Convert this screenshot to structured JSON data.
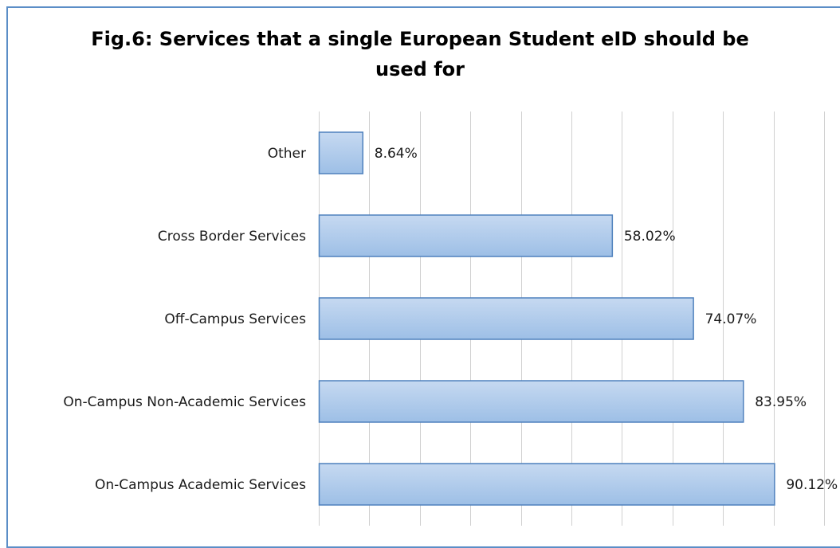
{
  "chart_data": {
    "type": "bar",
    "orientation": "horizontal",
    "title_lines": [
      "Fig.6: Services that a single European Student eID should be",
      "used for"
    ],
    "categories": [
      "Other",
      "Cross Border Services",
      "Off-Campus Services",
      "On-Campus Non-Academic Services",
      "On-Campus Academic Services"
    ],
    "values": [
      8.64,
      58.02,
      74.07,
      83.95,
      90.12
    ],
    "data_labels": [
      "8.64%",
      "58.02%",
      "74.07%",
      "83.95%",
      "90.12%"
    ],
    "xlim": [
      0,
      100
    ],
    "value_unit": "%",
    "grid": true,
    "legend": "none",
    "colors": {
      "bar_fill_top": "#c6d9f1",
      "bar_fill_bottom": "#9dbfe6",
      "bar_stroke": "#4f81bd",
      "grid": "#d0d0d0",
      "frame": "#5b8ec7"
    }
  }
}
